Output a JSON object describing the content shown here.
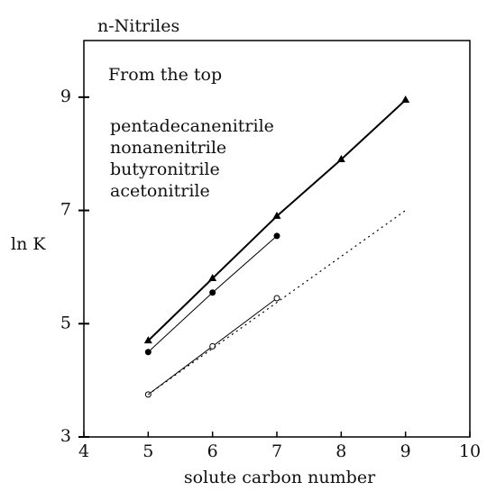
{
  "chart_data": {
    "type": "line",
    "title": "n-Nitriles",
    "xlabel": "solute carbon number",
    "ylabel": "ln K",
    "legend_title": "From the top",
    "xlim": [
      4,
      10
    ],
    "xticks": [
      4,
      5,
      6,
      7,
      8,
      9,
      10
    ],
    "ylim": [
      3,
      10
    ],
    "yticks": [
      3,
      5,
      7,
      9
    ],
    "series": [
      {
        "name": "pentadecanenitrile",
        "color": "#000000",
        "marker": "triangle",
        "line": "solid",
        "x": [
          5,
          6,
          7,
          8,
          9
        ],
        "values": [
          4.7,
          5.8,
          6.9,
          7.9,
          8.95
        ]
      },
      {
        "name": "nonanenitrile",
        "color": "#000000",
        "marker": "circle-filled",
        "line": "thin",
        "x": [
          5,
          6,
          7
        ],
        "values": [
          4.5,
          5.55,
          6.55
        ]
      },
      {
        "name": "butyronitrile",
        "color": "#000000",
        "marker": "circle-open",
        "line": "thin",
        "x": [
          5,
          6,
          7
        ],
        "values": [
          3.75,
          4.6,
          5.45
        ]
      },
      {
        "name": "acetonitrile",
        "color": "#000000",
        "marker": "none",
        "line": "dotted",
        "x": [
          5,
          9
        ],
        "values": [
          3.75,
          7.0
        ]
      }
    ]
  }
}
